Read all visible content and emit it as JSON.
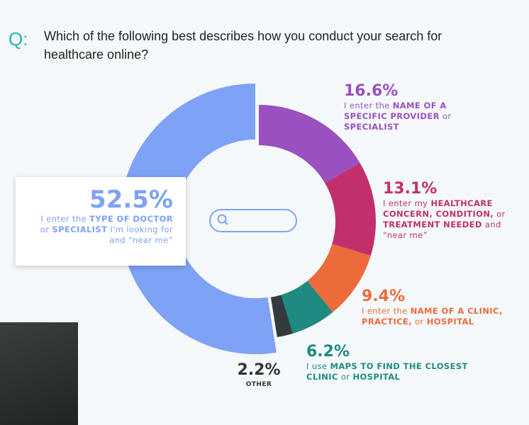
{
  "chart_data": {
    "type": "donut",
    "question_prefix": "Q:",
    "question": "Which of the following best describes how you conduct your search for healthcare online?",
    "values": [
      16.6,
      13.1,
      9.4,
      6.2,
      2.2,
      52.5
    ],
    "value_labels": [
      "16.6%",
      "13.1%",
      "9.4%",
      "6.2%",
      "2.2%",
      "52.5%"
    ],
    "colors": [
      "#9a50bf",
      "#c22f6d",
      "#ed6a3b",
      "#1e8a80",
      "#343b3f",
      "#7ea2f6"
    ],
    "descriptions": [
      [
        {
          "text": "I enter the "
        },
        {
          "text": "NAME OF A SPECIFIC PROVIDER",
          "bold": true
        },
        {
          "text": " or "
        },
        {
          "text": "SPECIALIST",
          "bold": true
        }
      ],
      [
        {
          "text": "I enter my "
        },
        {
          "text": "HEALTHCARE CONCERN, CONDITION,",
          "bold": true
        },
        {
          "text": " or "
        },
        {
          "text": "TREATMENT NEEDED",
          "bold": true
        },
        {
          "text": " and “near me”"
        }
      ],
      [
        {
          "text": "I enter the "
        },
        {
          "text": "NAME OF A CLINIC, PRACTICE,",
          "bold": true
        },
        {
          "text": " or "
        },
        {
          "text": "HOSPITAL",
          "bold": true
        }
      ],
      [
        {
          "text": "I use "
        },
        {
          "text": "MAPS TO FIND THE CLOSEST CLINIC",
          "bold": true
        },
        {
          "text": " or "
        },
        {
          "text": "HOSPITAL",
          "bold": true
        }
      ],
      [
        {
          "text": "OTHER",
          "bold": true
        }
      ],
      [
        {
          "text": "I enter the "
        },
        {
          "text": "TYPE OF DOCTOR",
          "bold": true
        },
        {
          "text": " or "
        },
        {
          "text": "SPECIALIST",
          "bold": true
        },
        {
          "text": " I'm looking for and “near me”"
        }
      ]
    ]
  }
}
